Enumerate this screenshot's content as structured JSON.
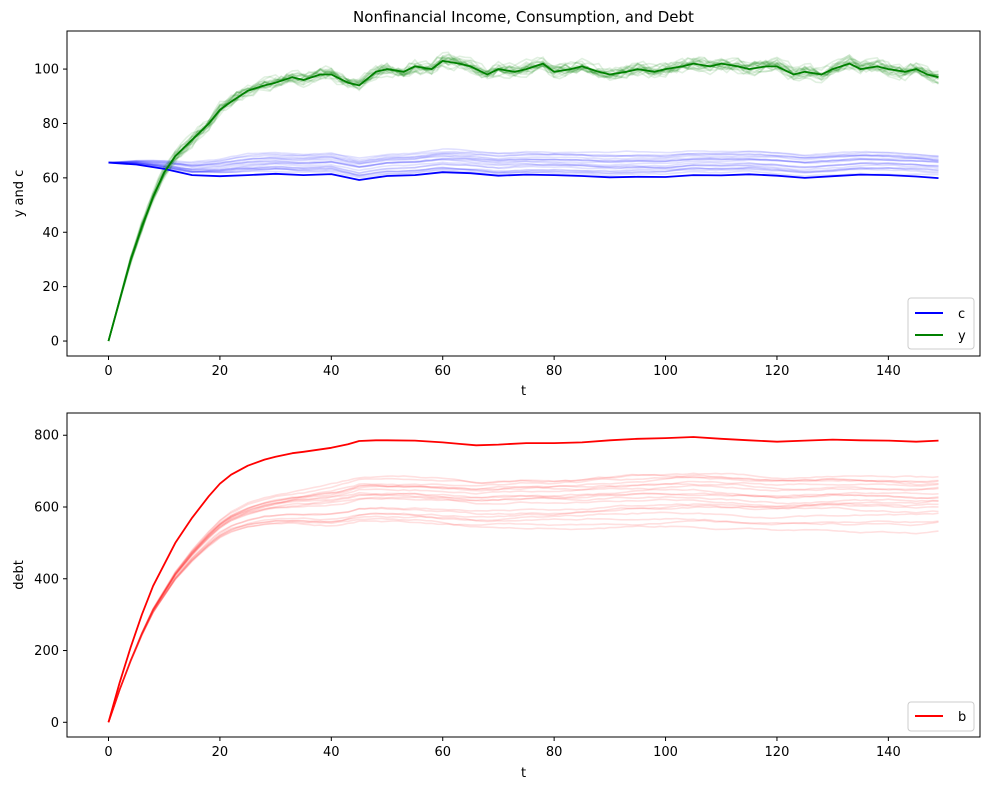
{
  "chart_data": [
    {
      "type": "line",
      "title": "Nonfinancial Income, Consumption, and Debt",
      "xlabel": "t",
      "ylabel": "y and c",
      "xlim": [
        -7.45,
        156.45
      ],
      "ylim": [
        -5.5,
        114
      ],
      "xticks": [
        0,
        20,
        40,
        60,
        80,
        100,
        120,
        140
      ],
      "yticks": [
        0,
        20,
        40,
        60,
        80,
        100
      ],
      "grid": false,
      "legend_position": "lower-right",
      "series": [
        {
          "name": "c",
          "color": "#0000ff",
          "x": [
            0,
            5,
            10,
            15,
            20,
            25,
            30,
            35,
            40,
            45,
            50,
            55,
            60,
            65,
            70,
            75,
            80,
            85,
            90,
            95,
            100,
            105,
            110,
            115,
            120,
            125,
            130,
            135,
            140,
            145,
            149
          ],
          "values": [
            65.6,
            64.9,
            63.3,
            61.0,
            60.6,
            61.0,
            61.5,
            61.0,
            61.4,
            59.2,
            60.7,
            61.0,
            62.1,
            61.7,
            60.8,
            61.2,
            61.0,
            60.7,
            60.2,
            60.4,
            60.3,
            61.0,
            60.9,
            61.3,
            60.8,
            60.0,
            60.6,
            61.2,
            61.0,
            60.5,
            59.9
          ]
        },
        {
          "name": "y",
          "color": "#008000",
          "x": [
            0,
            2,
            4,
            6,
            8,
            10,
            12,
            15,
            18,
            20,
            22,
            25,
            28,
            30,
            33,
            35,
            38,
            40,
            43,
            45,
            48,
            50,
            53,
            55,
            58,
            60,
            63,
            65,
            68,
            70,
            73,
            75,
            78,
            80,
            83,
            85,
            88,
            90,
            93,
            95,
            98,
            100,
            103,
            105,
            108,
            110,
            113,
            115,
            118,
            120,
            123,
            125,
            128,
            130,
            133,
            135,
            138,
            140,
            143,
            145,
            147,
            149
          ],
          "values": [
            0,
            15,
            30,
            42,
            53,
            62,
            68,
            74,
            80,
            85,
            88,
            92,
            94,
            95,
            97,
            96,
            98,
            98,
            95,
            94,
            99,
            100,
            99,
            101,
            100,
            103,
            102,
            101,
            98,
            100,
            99,
            100,
            102,
            99,
            100,
            101,
            99,
            98,
            99,
            100,
            99,
            100,
            101,
            102,
            101,
            102,
            101,
            100,
            101,
            101,
            98,
            99,
            98,
            100,
            102,
            100,
            101,
            100,
            99,
            100,
            98,
            97
          ]
        }
      ]
    },
    {
      "type": "line",
      "title": "",
      "xlabel": "t",
      "ylabel": "debt",
      "xlim": [
        -7.45,
        156.45
      ],
      "ylim": [
        -41,
        862
      ],
      "xticks": [
        0,
        20,
        40,
        60,
        80,
        100,
        120,
        140
      ],
      "yticks": [
        0,
        200,
        400,
        600,
        800
      ],
      "grid": false,
      "legend_position": "lower-right",
      "series": [
        {
          "name": "b",
          "color": "#ff0000",
          "x": [
            0,
            2,
            4,
            6,
            8,
            10,
            12,
            15,
            18,
            20,
            22,
            25,
            28,
            30,
            33,
            35,
            40,
            43,
            45,
            48,
            50,
            55,
            60,
            63,
            66,
            70,
            75,
            80,
            85,
            90,
            95,
            100,
            105,
            110,
            115,
            120,
            125,
            130,
            135,
            140,
            145,
            149
          ],
          "values": [
            0,
            110,
            210,
            300,
            380,
            440,
            500,
            570,
            630,
            665,
            690,
            715,
            732,
            740,
            750,
            754,
            765,
            775,
            784,
            786,
            786,
            785,
            780,
            776,
            772,
            774,
            778,
            778,
            780,
            786,
            790,
            792,
            795,
            790,
            786,
            782,
            785,
            788,
            786,
            785,
            782,
            785
          ]
        }
      ]
    }
  ]
}
